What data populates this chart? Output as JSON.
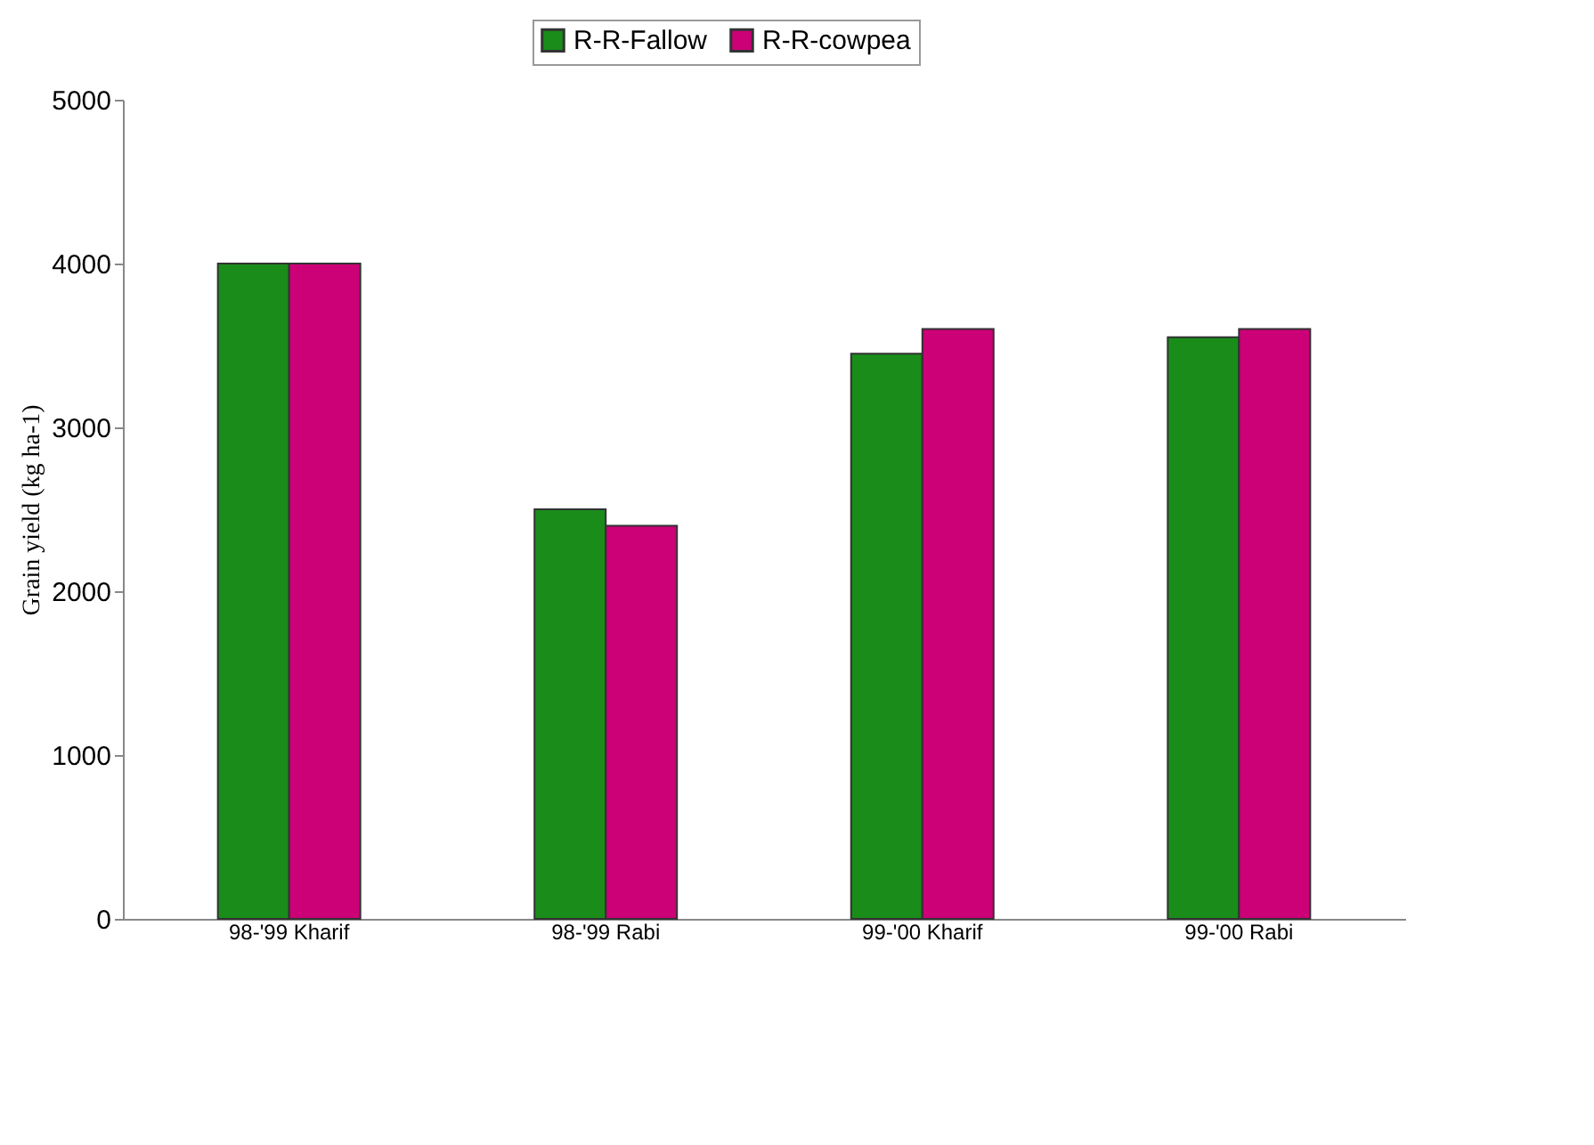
{
  "chart_data": {
    "type": "bar",
    "ylabel": "Grain yield (kg ha-1)",
    "categories": [
      "98-'99 Kharif",
      "98-'99 Rabi",
      "99-'00 Kharif",
      "99-'00 Rabi"
    ],
    "series": [
      {
        "name": "R-R-Fallow",
        "color": "#1a8c1a",
        "values": [
          4000,
          2500,
          3450,
          3550
        ]
      },
      {
        "name": "R-R-cowpea",
        "color": "#cc0077",
        "values": [
          4000,
          2400,
          3600,
          3600
        ]
      }
    ],
    "ylim": [
      0,
      5000
    ],
    "yticks": [
      0,
      1000,
      2000,
      3000,
      4000,
      5000
    ],
    "legend": "top"
  }
}
